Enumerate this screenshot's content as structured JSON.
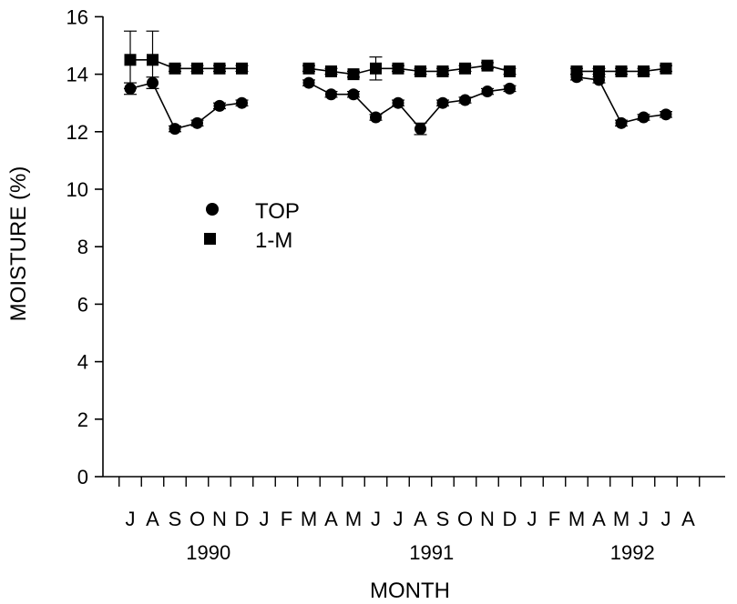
{
  "chart_data": {
    "type": "line",
    "ylabel": "MOISTURE  (%)",
    "xlabel": "MONTH",
    "ylim": [
      0,
      16
    ],
    "yticks": [
      0,
      2,
      4,
      6,
      8,
      10,
      12,
      14,
      16
    ],
    "month_labels": [
      "J",
      "A",
      "S",
      "O",
      "N",
      "D",
      "J",
      "F",
      "M",
      "A",
      "M",
      "J",
      "J",
      "A",
      "S",
      "O",
      "N",
      "D",
      "J",
      "F",
      "M",
      "A",
      "M",
      "J",
      "J",
      "A"
    ],
    "years": [
      {
        "label": "1990",
        "center_index": 3.5
      },
      {
        "label": "1991",
        "center_index": 13.5
      },
      {
        "label": "1992",
        "center_index": 22.5
      }
    ],
    "grid": false,
    "legend_position": "upper-left inside plot",
    "series": [
      {
        "name": "TOP",
        "marker": "circle",
        "segments": [
          [
            {
              "i": 0,
              "y": 13.5,
              "err": 0.2
            },
            {
              "i": 1,
              "y": 13.7,
              "err": 0.2
            },
            {
              "i": 2,
              "y": 12.1,
              "err": 0.1
            },
            {
              "i": 3,
              "y": 12.3,
              "err": 0.1
            },
            {
              "i": 4,
              "y": 12.9,
              "err": 0.1
            },
            {
              "i": 5,
              "y": 13.0,
              "err": 0.1
            }
          ],
          [
            {
              "i": 8,
              "y": 13.7,
              "err": 0.1
            },
            {
              "i": 9,
              "y": 13.3,
              "err": 0.1
            },
            {
              "i": 10,
              "y": 13.3,
              "err": 0.1
            },
            {
              "i": 11,
              "y": 12.5,
              "err": 0.1
            },
            {
              "i": 12,
              "y": 13.0,
              "err": 0.1
            },
            {
              "i": 13,
              "y": 12.1,
              "err": 0.2
            },
            {
              "i": 14,
              "y": 13.0,
              "err": 0.1
            },
            {
              "i": 15,
              "y": 13.1,
              "err": 0.1
            },
            {
              "i": 16,
              "y": 13.4,
              "err": 0.1
            },
            {
              "i": 17,
              "y": 13.5,
              "err": 0.1
            }
          ],
          [
            {
              "i": 20,
              "y": 13.9,
              "err": 0.1
            },
            {
              "i": 21,
              "y": 13.8,
              "err": 0.1
            },
            {
              "i": 22,
              "y": 12.3,
              "err": 0.1
            },
            {
              "i": 23,
              "y": 12.5,
              "err": 0.1
            },
            {
              "i": 24,
              "y": 12.6,
              "err": 0.1
            }
          ]
        ]
      },
      {
        "name": "1-M",
        "marker": "square",
        "segments": [
          [
            {
              "i": 0,
              "y": 14.5,
              "err": 1.0
            },
            {
              "i": 1,
              "y": 14.5,
              "err": 1.0
            },
            {
              "i": 2,
              "y": 14.2,
              "err": 0.1
            },
            {
              "i": 3,
              "y": 14.2,
              "err": 0.1
            },
            {
              "i": 4,
              "y": 14.2,
              "err": 0.1
            },
            {
              "i": 5,
              "y": 14.2,
              "err": 0.1
            }
          ],
          [
            {
              "i": 8,
              "y": 14.2,
              "err": 0.1
            },
            {
              "i": 9,
              "y": 14.1,
              "err": 0.1
            },
            {
              "i": 10,
              "y": 14.0,
              "err": 0.1
            },
            {
              "i": 11,
              "y": 14.2,
              "err": 0.4
            },
            {
              "i": 12,
              "y": 14.2,
              "err": 0.1
            },
            {
              "i": 13,
              "y": 14.1,
              "err": 0.1
            },
            {
              "i": 14,
              "y": 14.1,
              "err": 0.1
            },
            {
              "i": 15,
              "y": 14.2,
              "err": 0.1
            },
            {
              "i": 16,
              "y": 14.3,
              "err": 0.1
            },
            {
              "i": 17,
              "y": 14.1,
              "err": 0.1
            }
          ],
          [
            {
              "i": 20,
              "y": 14.1,
              "err": 0.1
            },
            {
              "i": 21,
              "y": 14.1,
              "err": 0.1
            },
            {
              "i": 22,
              "y": 14.1,
              "err": 0.1
            },
            {
              "i": 23,
              "y": 14.1,
              "err": 0.1
            },
            {
              "i": 24,
              "y": 14.2,
              "err": 0.1
            }
          ]
        ]
      }
    ]
  }
}
